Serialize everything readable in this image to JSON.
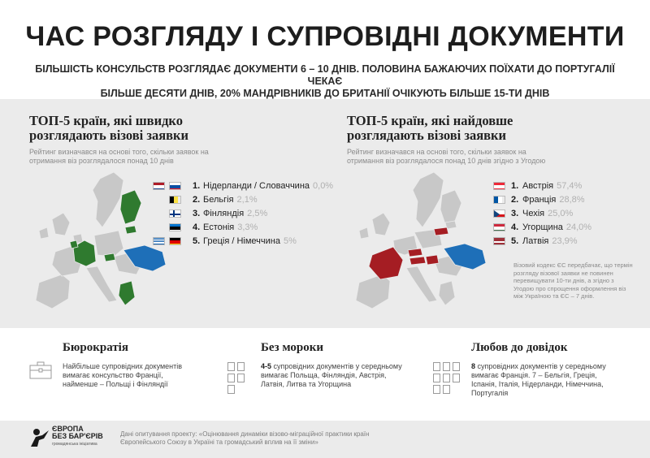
{
  "header": {
    "title": "ЧАС РОЗГЛЯДУ І СУПРОВІДНІ ДОКУМЕНТИ",
    "subtitle_line1": "БІЛЬШІСТЬ КОНСУЛЬСТВ РОЗГЛЯДАЄ ДОКУМЕНТИ  6 – 10 ДНІВ. ПОЛОВИНА БАЖАЮЧИХ ПОЇХАТИ ДО ПОРТУГАЛІЇ ЧЕКАЄ",
    "subtitle_line2": "БІЛЬШЕ ДЕСЯТИ ДНІВ, 20% МАНДРІВНИКІВ ДО БРИТАНІЇ ОЧІКУЮТЬ БІЛЬШЕ 15-ТИ ДНІВ"
  },
  "fast": {
    "title_line1": "ТОП-5 країн, які швидко",
    "title_line2": "розглядають візові заявки",
    "note_line1": "Рейтинг визначався на основі того, скільки заявок на",
    "note_line2": "отримання віз розглядалося понад 10 днів",
    "items": [
      {
        "num": "1.",
        "country": "Нідерланди / Словаччина",
        "pct": "0,0%"
      },
      {
        "num": "2.",
        "country": "Бельгія",
        "pct": "2,1%"
      },
      {
        "num": "3.",
        "country": "Фінляндія",
        "pct": "2,5%"
      },
      {
        "num": "4.",
        "country": "Естонія",
        "pct": "3,3%"
      },
      {
        "num": "5.",
        "country": "Греція / Німеччина",
        "pct": "5%"
      }
    ],
    "map_highlight": "#2f7a2f"
  },
  "slow": {
    "title_line1": "ТОП-5 країн, які найдовше",
    "title_line2": "розглядають візові заявки",
    "note_line1": "Рейтинг визначався на основі того, скільки заявок на",
    "note_line2": "отримання віз розглядалося понад 10 днів згідно з Угодою",
    "items": [
      {
        "num": "1.",
        "country": "Австрія",
        "pct": "57,4%"
      },
      {
        "num": "2.",
        "country": "Франція",
        "pct": "28,8%"
      },
      {
        "num": "3.",
        "country": "Чехія",
        "pct": "25,0%"
      },
      {
        "num": "4.",
        "country": "Угорщина",
        "pct": "24,0%"
      },
      {
        "num": "5.",
        "country": "Латвія",
        "pct": "23,9%"
      }
    ],
    "map_highlight": "#a51d23",
    "sidenote": "Візовий кодекс ЄС передбачає, що термін розгляду візової заявки не повинен перевищувати 10-ти днів, а згідно з Угодою про спрощення оформлення віз між Україною та ЄС – 7 днів."
  },
  "colors": {
    "ukraine": "#1e6fb8",
    "land": "#c8c8c8",
    "panel_bg": "#ebebeb"
  },
  "cards": [
    {
      "head": "Бюрократія",
      "line1": "Найбільше супровідних  документів",
      "line2": "вимагає консульство Франції,",
      "line3": "найменше – Польщі і Фінляндії",
      "icon": "briefcase-icon"
    },
    {
      "head": "Без мороки",
      "bold": "4-5",
      "line1": " супровідних документів у середньому",
      "line2": "вимагає Польща, Фінляндія, Австрія,",
      "line3": "Латвія, Литва та Угорщина",
      "icon": "documents-icon"
    },
    {
      "head": "Любов до довідок",
      "bold": "8",
      "line1": " супровідних документів у середньому",
      "line2": "вимагає  Франція.  7 – Бельгія, Греція,",
      "line3": "Іспанія, Італія, Нідерланди, Німеччина,",
      "line4": "Португалія",
      "icon": "documents-icon"
    }
  ],
  "footer": {
    "logo_line1": "ЄВРОПА",
    "logo_line2": "БЕЗ БАР'ЄРІВ",
    "logo_sub": "громадянська ініціатива",
    "text_line1": "Дані опитування проекту: «Оцінювання динаміки візово-міграційної практики країн",
    "text_line2": "Європейського Союзу в Україні та громадський вплив на її зміни»"
  }
}
